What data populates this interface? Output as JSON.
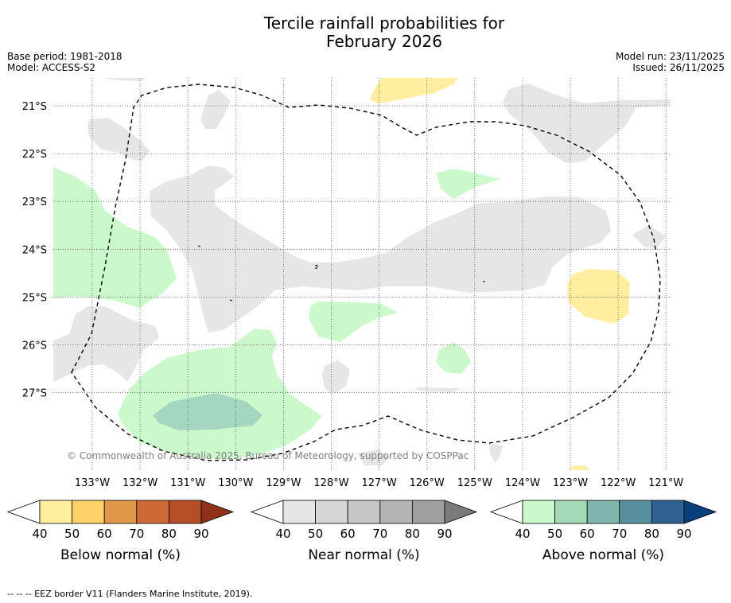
{
  "title_line1": "Tercile rainfall probabilities for",
  "title_line2": "February 2026",
  "base_period": "Base period: 1981-2018",
  "model": "Model: ACCESS-S2",
  "model_run": "Model run: 23/11/2025",
  "issued": "Issued: 26/11/2025",
  "copyright": "© Commonwealth of Australia 2025, Bureau of Meteorology, supported by COSPPac",
  "footnote": "--  --  -- EEZ border V11 (Flanders Marine Institute, 2019).",
  "lat_labels": [
    "21°S",
    "22°S",
    "23°S",
    "24°S",
    "25°S",
    "26°S",
    "27°S"
  ],
  "lon_labels": [
    "133°W",
    "132°W",
    "131°W",
    "130°W",
    "129°W",
    "128°W",
    "127°W",
    "126°W",
    "125°W",
    "124°W",
    "123°W",
    "122°W",
    "121°W"
  ],
  "colorbars": [
    {
      "title": "Below normal (%)",
      "ticks": [
        "40",
        "50",
        "60",
        "70",
        "80",
        "90"
      ],
      "colors": [
        "#ffffff",
        "#ffeda0",
        "#fed166",
        "#e0974a",
        "#cd6a35",
        "#b54e26",
        "#8f3017"
      ]
    },
    {
      "title": "Near normal (%)",
      "ticks": [
        "40",
        "50",
        "60",
        "70",
        "80",
        "90"
      ],
      "colors": [
        "#ffffff",
        "#e6e6e6",
        "#d6d6d6",
        "#c6c6c6",
        "#b4b4b4",
        "#a0a0a0",
        "#7a7a7a"
      ]
    },
    {
      "title": "Above normal (%)",
      "ticks": [
        "40",
        "50",
        "60",
        "70",
        "80",
        "90"
      ],
      "colors": [
        "#ffffff",
        "#cbf9cc",
        "#a4dab8",
        "#7fb5ac",
        "#5890a0",
        "#306291",
        "#0b3e7c"
      ]
    }
  ],
  "map_colors": {
    "near_normal_40": "#e6e6e6",
    "below_normal_40": "#ffeda0",
    "above_normal_40": "#cbf9cc",
    "above_normal_50": "#a4d7c0",
    "grid": "#555555",
    "eez_border": "#000000"
  }
}
